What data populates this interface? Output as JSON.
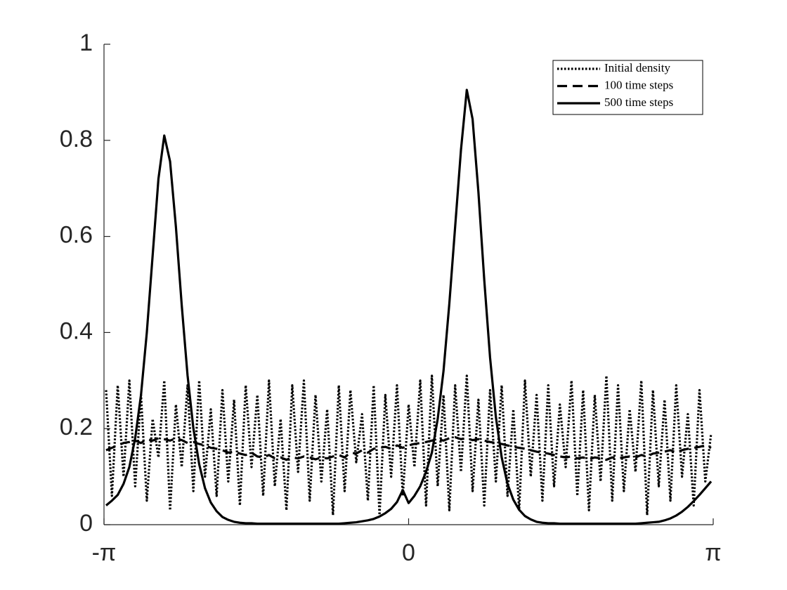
{
  "chart_data": {
    "type": "line",
    "x": [
      -3.12,
      -3.06,
      -3,
      -2.94,
      -2.88,
      -2.82,
      -2.76,
      -2.7,
      -2.64,
      -2.58,
      -2.52,
      -2.46,
      -2.4,
      -2.34,
      -2.28,
      -2.22,
      -2.16,
      -2.1,
      -2.04,
      -1.98,
      -1.92,
      -1.86,
      -1.8,
      -1.74,
      -1.68,
      -1.62,
      -1.56,
      -1.5,
      -1.44,
      -1.38,
      -1.32,
      -1.26,
      -1.2,
      -1.14,
      -1.08,
      -1.02,
      -0.96,
      -0.9,
      -0.84,
      -0.78,
      -0.72,
      -0.66,
      -0.6,
      -0.54,
      -0.48,
      -0.42,
      -0.36,
      -0.3,
      -0.24,
      -0.18,
      -0.12,
      -0.06,
      0,
      0.06,
      0.12,
      0.18,
      0.24,
      0.3,
      0.36,
      0.42,
      0.48,
      0.54,
      0.6,
      0.66,
      0.72,
      0.78,
      0.84,
      0.9,
      0.96,
      1.02,
      1.08,
      1.14,
      1.2,
      1.26,
      1.32,
      1.38,
      1.44,
      1.5,
      1.56,
      1.62,
      1.68,
      1.74,
      1.8,
      1.86,
      1.92,
      1.98,
      2.04,
      2.1,
      2.16,
      2.22,
      2.28,
      2.34,
      2.4,
      2.46,
      2.52,
      2.58,
      2.64,
      2.7,
      2.76,
      2.82,
      2.88,
      2.94,
      3,
      3.06,
      3.12
    ],
    "series": [
      {
        "name": "Initial density",
        "color": "#000000",
        "line_style": "dotted",
        "values": [
          0.28,
          0.06,
          0.29,
          0.1,
          0.3,
          0.08,
          0.27,
          0.05,
          0.22,
          0.14,
          0.3,
          0.03,
          0.25,
          0.12,
          0.29,
          0.07,
          0.3,
          0.1,
          0.24,
          0.06,
          0.28,
          0.09,
          0.26,
          0.04,
          0.29,
          0.12,
          0.27,
          0.06,
          0.3,
          0.08,
          0.22,
          0.03,
          0.29,
          0.11,
          0.3,
          0.05,
          0.27,
          0.09,
          0.24,
          0.02,
          0.29,
          0.07,
          0.28,
          0.13,
          0.23,
          0.05,
          0.29,
          0.02,
          0.27,
          0.1,
          0.29,
          0.06,
          0.25,
          0.12,
          0.3,
          0.04,
          0.31,
          0.08,
          0.27,
          0.03,
          0.29,
          0.11,
          0.31,
          0.07,
          0.26,
          0.04,
          0.28,
          0.09,
          0.29,
          0.06,
          0.24,
          0.03,
          0.3,
          0.1,
          0.27,
          0.05,
          0.29,
          0.08,
          0.25,
          0.12,
          0.3,
          0.06,
          0.28,
          0.03,
          0.27,
          0.09,
          0.31,
          0.05,
          0.29,
          0.07,
          0.24,
          0.11,
          0.3,
          0.02,
          0.28,
          0.08,
          0.26,
          0.05,
          0.29,
          0.1,
          0.23,
          0.04,
          0.28,
          0.09,
          0.19
        ]
      },
      {
        "name": "100 time steps",
        "color": "#000000",
        "line_style": "dashed",
        "values": [
          0.155,
          0.16,
          0.165,
          0.17,
          0.172,
          0.175,
          0.17,
          0.178,
          0.175,
          0.18,
          0.178,
          0.175,
          0.18,
          0.176,
          0.17,
          0.172,
          0.168,
          0.165,
          0.16,
          0.158,
          0.155,
          0.15,
          0.152,
          0.148,
          0.145,
          0.15,
          0.142,
          0.14,
          0.145,
          0.138,
          0.14,
          0.135,
          0.14,
          0.138,
          0.142,
          0.14,
          0.136,
          0.14,
          0.138,
          0.142,
          0.145,
          0.14,
          0.15,
          0.148,
          0.155,
          0.15,
          0.158,
          0.16,
          0.162,
          0.158,
          0.165,
          0.16,
          0.165,
          0.168,
          0.17,
          0.172,
          0.175,
          0.178,
          0.175,
          0.18,
          0.182,
          0.178,
          0.18,
          0.176,
          0.178,
          0.175,
          0.172,
          0.17,
          0.168,
          0.165,
          0.162,
          0.16,
          0.158,
          0.155,
          0.152,
          0.15,
          0.148,
          0.145,
          0.142,
          0.14,
          0.142,
          0.138,
          0.14,
          0.136,
          0.14,
          0.138,
          0.135,
          0.14,
          0.138,
          0.14,
          0.142,
          0.14,
          0.145,
          0.142,
          0.148,
          0.15,
          0.152,
          0.155,
          0.15,
          0.155,
          0.158,
          0.16,
          0.162,
          0.165,
          0.16
        ]
      },
      {
        "name": "500 time steps",
        "color": "#000000",
        "line_style": "solid",
        "values": [
          0.04,
          0.05,
          0.062,
          0.085,
          0.12,
          0.18,
          0.27,
          0.4,
          0.56,
          0.72,
          0.81,
          0.756,
          0.62,
          0.457,
          0.311,
          0.201,
          0.126,
          0.076,
          0.046,
          0.028,
          0.016,
          0.01,
          0.006,
          0.004,
          0.003,
          0.003,
          0.002,
          0.002,
          0.002,
          0.002,
          0.002,
          0.002,
          0.002,
          0.002,
          0.002,
          0.002,
          0.002,
          0.002,
          0.002,
          0.002,
          0.002,
          0.003,
          0.004,
          0.005,
          0.007,
          0.009,
          0.012,
          0.017,
          0.024,
          0.033,
          0.047,
          0.072,
          0.045,
          0.06,
          0.08,
          0.11,
          0.15,
          0.22,
          0.32,
          0.46,
          0.62,
          0.78,
          0.905,
          0.844,
          0.692,
          0.51,
          0.348,
          0.224,
          0.14,
          0.085,
          0.052,
          0.031,
          0.018,
          0.011,
          0.006,
          0.004,
          0.003,
          0.003,
          0.002,
          0.002,
          0.002,
          0.002,
          0.002,
          0.002,
          0.002,
          0.002,
          0.002,
          0.002,
          0.002,
          0.002,
          0.002,
          0.002,
          0.003,
          0.004,
          0.005,
          0.006,
          0.009,
          0.013,
          0.019,
          0.027,
          0.037,
          0.049,
          0.062,
          0.076,
          0.09
        ]
      }
    ],
    "xlim": [
      -3.1416,
      3.1416
    ],
    "xticks": [
      {
        "value": -3.1416,
        "label": "-π"
      },
      0,
      {
        "value": 3.1416,
        "label": "π"
      }
    ],
    "ylim": [
      0,
      1
    ],
    "yticks": [
      0,
      0.2,
      0.4,
      0.6,
      0.8,
      1
    ],
    "grid": false,
    "legend": "upper right"
  }
}
